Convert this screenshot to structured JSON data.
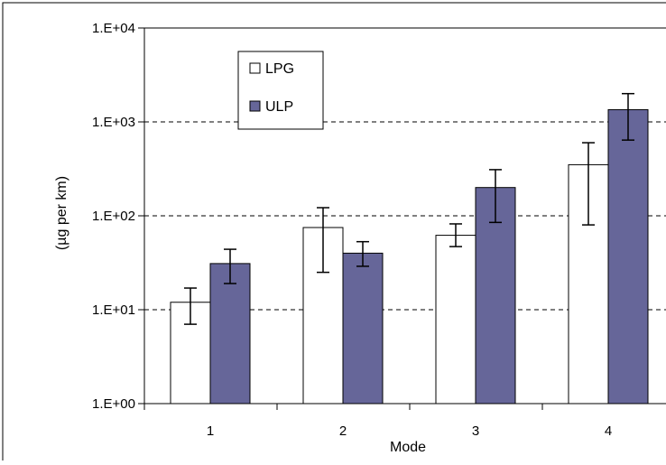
{
  "chart_data": {
    "type": "bar",
    "xlabel": "Mode",
    "ylabel": "(µg per km)",
    "yscale": "log",
    "ylim": [
      1,
      10000
    ],
    "yticks": [
      1,
      10,
      100,
      1000,
      10000
    ],
    "ytick_labels": [
      "1.E+00",
      "1.E+01",
      "1.E+02",
      "1.E+03",
      "1.E+04"
    ],
    "categories": [
      "1",
      "2",
      "3",
      "4"
    ],
    "grid": "horizontal dashed",
    "legend_position": "top-left",
    "series": [
      {
        "name": "LPG",
        "color": "#ffffff",
        "values": [
          12,
          75,
          62,
          350
        ],
        "error_low": [
          7,
          25,
          47,
          80
        ],
        "error_high": [
          17,
          122,
          82,
          600
        ]
      },
      {
        "name": "ULP",
        "color": "#666699",
        "values": [
          31,
          40,
          200,
          1350
        ],
        "error_low": [
          19,
          29,
          85,
          640
        ],
        "error_high": [
          44,
          53,
          310,
          2000
        ]
      }
    ]
  }
}
